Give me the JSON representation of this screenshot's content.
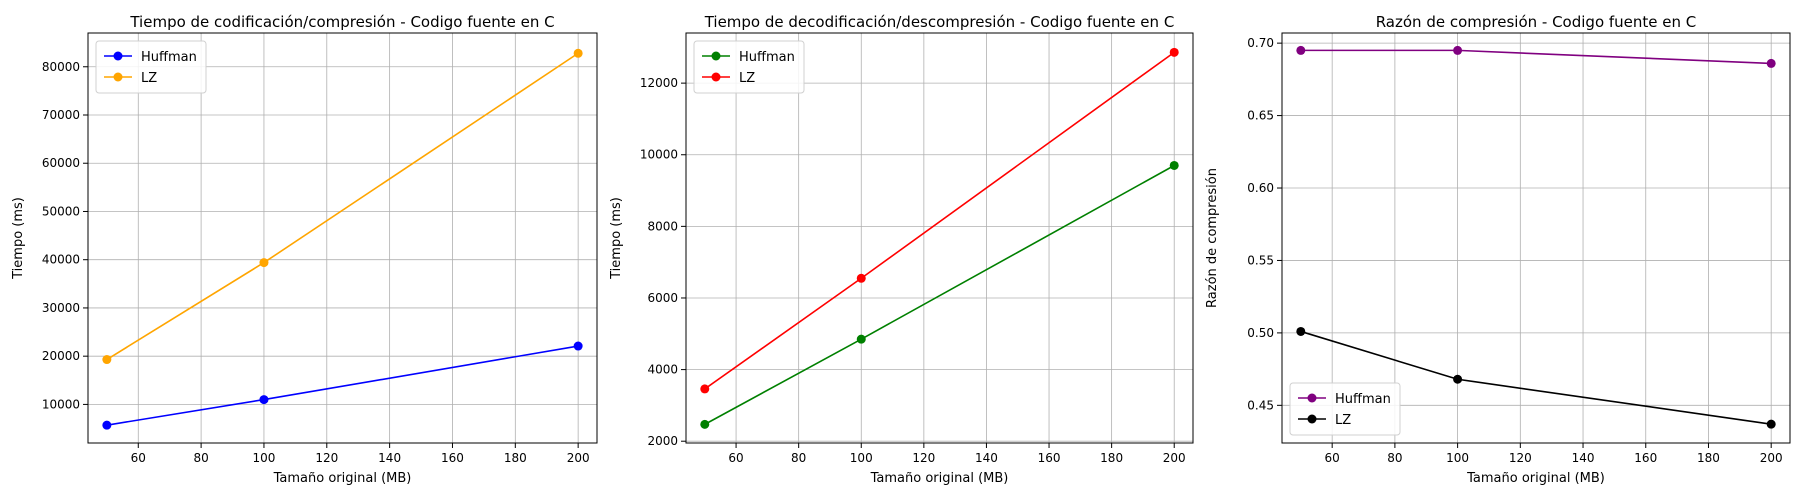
{
  "chart_data": [
    {
      "type": "line",
      "title": "Tiempo de codificación/compresión - Codigo fuente en C",
      "xlabel": "Tamaño original (MB)",
      "ylabel": "Tiempo (ms)",
      "x": [
        50,
        100,
        200
      ],
      "xlim": [
        44,
        206
      ],
      "ylim": [
        2000,
        87000
      ],
      "xticks": [
        60,
        80,
        100,
        120,
        140,
        160,
        180,
        200
      ],
      "yticks": [
        10000,
        20000,
        30000,
        40000,
        50000,
        60000,
        70000,
        80000
      ],
      "grid": true,
      "legend_position": "upper-left",
      "series": [
        {
          "name": "Huffman",
          "values": [
            5700,
            11000,
            22100
          ],
          "color": "#0000ff"
        },
        {
          "name": "LZ",
          "values": [
            19300,
            39400,
            82800
          ],
          "color": "#ffa500"
        }
      ]
    },
    {
      "type": "line",
      "title": "Tiempo de decodificación/descompresión - Codigo fuente en C",
      "xlabel": "Tamaño original (MB)",
      "ylabel": "Tiempo (ms)",
      "x": [
        50,
        100,
        200
      ],
      "xlim": [
        44,
        206
      ],
      "ylim": [
        1950,
        13400
      ],
      "xticks": [
        60,
        80,
        100,
        120,
        140,
        160,
        180,
        200
      ],
      "yticks": [
        2000,
        4000,
        6000,
        8000,
        10000,
        12000
      ],
      "grid": true,
      "legend_position": "upper-left",
      "series": [
        {
          "name": "Huffman",
          "values": [
            2470,
            4850,
            9700
          ],
          "color": "#008000"
        },
        {
          "name": "LZ",
          "values": [
            3460,
            6550,
            12860
          ],
          "color": "#ff0000"
        }
      ]
    },
    {
      "type": "line",
      "title": "Razón de compresión - Codigo fuente en C",
      "xlabel": "Tamaño original (MB)",
      "ylabel": "Razón de compresión",
      "x": [
        50,
        100,
        200
      ],
      "xlim": [
        44,
        206
      ],
      "ylim": [
        0.424,
        0.707
      ],
      "xticks": [
        60,
        80,
        100,
        120,
        140,
        160,
        180,
        200
      ],
      "yticks": [
        0.45,
        0.5,
        0.55,
        0.6,
        0.65,
        0.7
      ],
      "ytick_decimals": 2,
      "grid": true,
      "legend_position": "lower-left",
      "series": [
        {
          "name": "Huffman",
          "values": [
            0.695,
            0.695,
            0.686
          ],
          "color": "#800080"
        },
        {
          "name": "LZ",
          "values": [
            0.501,
            0.468,
            0.437
          ],
          "color": "#000000"
        }
      ]
    }
  ]
}
